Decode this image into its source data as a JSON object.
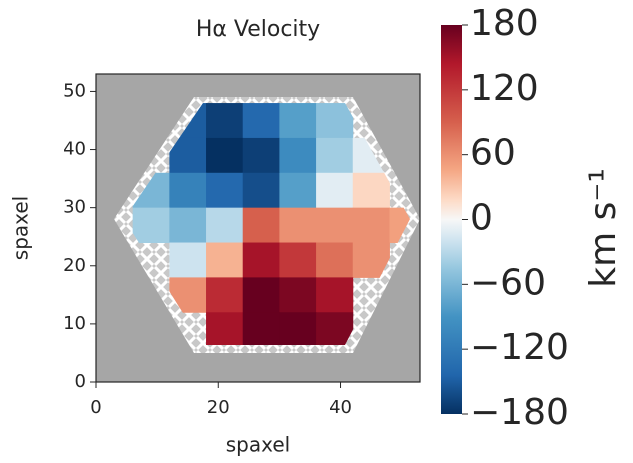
{
  "chart_data": {
    "type": "heatmap",
    "title": "Hα Velocity",
    "x_label": "spaxel",
    "y_label": "spaxel",
    "x": [
      3,
      9,
      15,
      21,
      27,
      33,
      39,
      45,
      51
    ],
    "y": [
      51,
      45,
      39,
      33,
      27,
      21,
      15,
      9,
      3
    ],
    "values": [
      [
        null,
        null,
        null,
        null,
        null,
        null,
        null,
        null,
        null
      ],
      [
        null,
        null,
        -150,
        -170,
        -140,
        -80,
        -50,
        null,
        null
      ],
      [
        null,
        null,
        -150,
        -180,
        -170,
        -100,
        -40,
        -10,
        null
      ],
      [
        null,
        -60,
        -110,
        -140,
        -160,
        -80,
        -10,
        20,
        null
      ],
      [
        null,
        -40,
        -60,
        -30,
        90,
        60,
        60,
        60,
        50
      ],
      [
        null,
        null,
        -20,
        40,
        150,
        120,
        80,
        60,
        null
      ],
      [
        null,
        null,
        60,
        130,
        180,
        170,
        150,
        null,
        null
      ],
      [
        null,
        null,
        null,
        150,
        180,
        180,
        170,
        null,
        null
      ],
      [
        null,
        null,
        null,
        null,
        null,
        null,
        null,
        null,
        null
      ]
    ],
    "xlim": [
      0,
      53
    ],
    "ylim": [
      0,
      53
    ],
    "xticks": [
      0,
      20,
      40
    ],
    "yticks": [
      0,
      10,
      20,
      30,
      40,
      50
    ],
    "colormap": "RdBu_r",
    "colorbar": {
      "label": "km s⁻¹",
      "lim": [
        -180,
        180
      ],
      "ticks": [
        {
          "value": -180,
          "label": "−180"
        },
        {
          "value": -120,
          "label": "−120"
        },
        {
          "value": -60,
          "label": "−60"
        },
        0,
        60,
        120,
        180
      ]
    }
  }
}
